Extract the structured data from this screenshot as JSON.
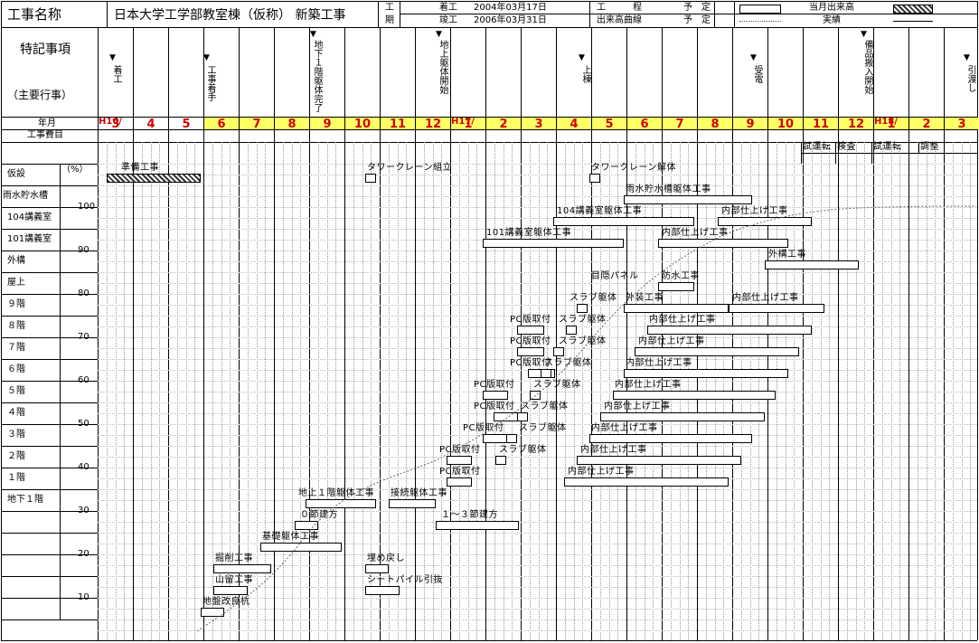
{
  "header": {
    "project_label": "工事名称",
    "project_name": "日本大学工学部教室棟（仮称） 新築工事",
    "period_label_1": "工",
    "period_label_2": "期",
    "start_label": "着工",
    "start_date": "2004年03月17日",
    "end_label": "竣工",
    "end_date": "2006年03月31日",
    "legend_process": "工　　　程",
    "legend_curve": "出来高曲線",
    "plan": "予　定",
    "plan2": "予　定",
    "legend_month": "当月出来高",
    "legend_actual": "実績"
  },
  "left": {
    "special_title": "特記事項",
    "special_sub": "（主要行事）",
    "year_month": "年月",
    "cost_label": "工事費目",
    "percent_label": "（%）",
    "rows": [
      "仮設",
      "雨水貯水槽",
      "104講義室",
      "101講義室",
      "外構",
      "屋上",
      "９階",
      "８階",
      "７階",
      "６階",
      "５階",
      "４階",
      "３階",
      "２階",
      "１階",
      "地下１階"
    ]
  },
  "milestones": [
    {
      "text": "着工"
    },
    {
      "text": "工事着手"
    },
    {
      "text": "地下１階躯体完了"
    },
    {
      "text": "地上躯体開始"
    },
    {
      "text": "上棟"
    },
    {
      "text": "受電"
    },
    {
      "text": "備品搬入開始"
    },
    {
      "text": "引渡し"
    }
  ],
  "months": {
    "h16": "H16/",
    "h17": "H17/",
    "h18": "H18/",
    "list": [
      "3",
      "4",
      "5",
      "6",
      "7",
      "8",
      "9",
      "10",
      "11",
      "12",
      "1",
      "2",
      "3",
      "4",
      "5",
      "6",
      "7",
      "8",
      "9",
      "10",
      "11",
      "12",
      "1",
      "2",
      "3"
    ]
  },
  "top_tasks": [
    "試運転",
    "検査",
    "試運転",
    "調整"
  ],
  "y_ticks": [
    "100",
    "90",
    "80",
    "70",
    "60",
    "50",
    "40",
    "30",
    "20",
    "10"
  ],
  "bar_labels": [
    "準備工事",
    "タワークレーン組立",
    "タワークレーン解体",
    "雨水貯水槽躯体工事",
    "104講義室躯体工事",
    "内部仕上げ工事",
    "101講義室躯体工事",
    "内部仕上げ工事",
    "外構工事",
    "目隠パネル",
    "防水工事",
    "スラブ躯体",
    "外装工事",
    "内部仕上げ工事",
    "PC版取付",
    "スラブ躯体",
    "内部仕上げ工事",
    "PC版取付",
    "スラブ躯体",
    "内部仕上げ工事",
    "PC版取付",
    "スラブ躯体",
    "内部仕上げ工事",
    "PC版取付",
    "スラブ躯体",
    "内部仕上げ工事",
    "PC版取付",
    "スラブ躯体",
    "内部仕上げ工事",
    "PC版取付",
    "スラブ躯体",
    "内部仕上げ工事",
    "PC版取付",
    "スラブ躯体",
    "内部仕上げ工事",
    "PC版取付",
    "内部仕上げ工事",
    "地上１階躯体工事",
    "接続躯体工事",
    "０節建方",
    "１～３節建方",
    "基礎躯体工事",
    "掘削工事",
    "埋め戻し",
    "山留工事",
    "シートパイル引抜",
    "地盤改良杭"
  ]
}
